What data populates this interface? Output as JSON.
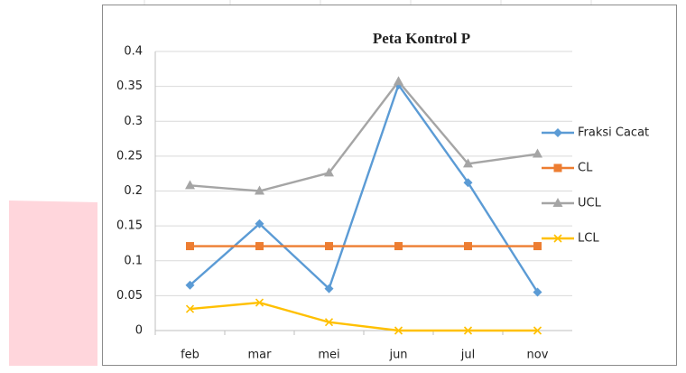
{
  "chart_data": {
    "type": "line",
    "title": "Peta Kontrol P",
    "categories": [
      "feb",
      "mar",
      "mei",
      "jun",
      "jul",
      "nov"
    ],
    "series": [
      {
        "name": "Fraksi Cacat",
        "color": "#5b9bd5",
        "marker": "diamond",
        "values": [
          0.065,
          0.153,
          0.06,
          0.352,
          0.212,
          0.055
        ]
      },
      {
        "name": "CL",
        "color": "#ed7d31",
        "marker": "square",
        "values": [
          0.121,
          0.121,
          0.121,
          0.121,
          0.121,
          0.121
        ]
      },
      {
        "name": "UCL",
        "color": "#a5a5a5",
        "marker": "triangle",
        "values": [
          0.208,
          0.2,
          0.226,
          0.357,
          0.239,
          0.253
        ]
      },
      {
        "name": "LCL",
        "color": "#ffc000",
        "marker": "x",
        "values": [
          0.031,
          0.04,
          0.012,
          0,
          0,
          0
        ]
      }
    ],
    "ylim": [
      0,
      0.4
    ],
    "yticks": [
      0,
      0.05,
      0.1,
      0.15,
      0.2,
      0.25,
      0.3,
      0.35,
      0.4
    ],
    "grid": true,
    "legend": "right"
  }
}
